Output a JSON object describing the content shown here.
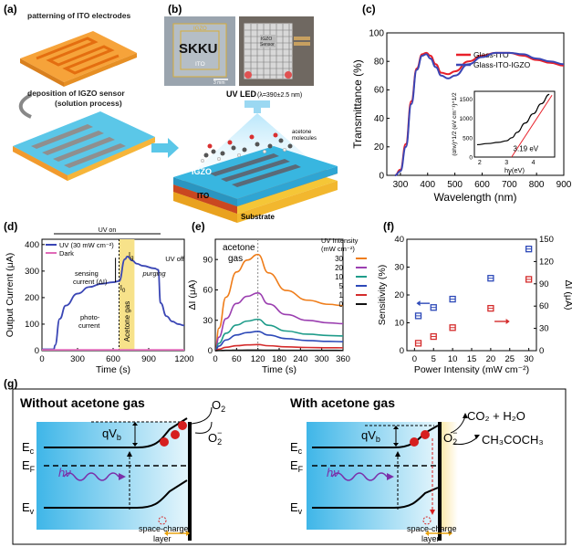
{
  "panels": {
    "a": {
      "label": "(a)",
      "step1": "patterning of ITO electrodes",
      "step2": "deposition of IGZO sensor",
      "step2b": "(solution process)"
    },
    "b": {
      "label": "(b)",
      "photo1_igzo": "IGZO",
      "photo1_skku": "SKKU",
      "photo1_ito": "ITO",
      "photo1_scale": "3 mm",
      "photo2_text1": "IGZO",
      "photo2_text2": "Sensor",
      "uv_led": "UV LED",
      "uv_lambda": "(λ=390±2.5 nm)",
      "acetone": "acetone",
      "molecules": "molecules",
      "igzo": "IGZO",
      "ito": "ITO",
      "substrate": "Substrate"
    },
    "g": {
      "label": "(g)",
      "left_title": "Without acetone gas",
      "right_title": "With acetone gas",
      "qvb": "qV",
      "qvb_sub": "b",
      "ec": "E",
      "ec_sub": "c",
      "ef": "E",
      "ef_sub": "F",
      "ev": "E",
      "ev_sub": "v",
      "hv": "hν",
      "o2": "O",
      "o2_sub": "2",
      "o2m": "O",
      "o2m_sub": "2",
      "o2m_sup": "−",
      "products": "CO₂ + H₂O",
      "acetone_formula": "CH₃COCH₃",
      "space_charge": "space-charge",
      "layer": "layer"
    }
  },
  "chart_data": [
    {
      "id": "c",
      "label": "(c)",
      "type": "line",
      "xlabel": "Wavelength (nm)",
      "ylabel": "Transmittance (%)",
      "xlim": [
        250,
        900
      ],
      "ylim": [
        0,
        100
      ],
      "xticks": [
        300,
        400,
        500,
        600,
        700,
        800,
        900
      ],
      "yticks": [
        0,
        20,
        40,
        60,
        80,
        100
      ],
      "legend_position": "top-right",
      "series": [
        {
          "name": "Glass-ITO",
          "color": "#e8202a",
          "x": [
            280,
            300,
            320,
            340,
            360,
            380,
            395,
            410,
            430,
            450,
            475,
            500,
            550,
            600,
            650,
            700,
            750,
            800,
            850,
            900
          ],
          "y": [
            0,
            4,
            22,
            52,
            75,
            85,
            86,
            84,
            78,
            72,
            71,
            73,
            80,
            84,
            86,
            86,
            84,
            81,
            79,
            77
          ]
        },
        {
          "name": "Glass-ITO-IGZO",
          "color": "#3a46b5",
          "x": [
            280,
            300,
            320,
            340,
            360,
            380,
            395,
            410,
            430,
            450,
            475,
            500,
            550,
            600,
            650,
            700,
            750,
            800,
            850,
            900
          ],
          "y": [
            0,
            3,
            20,
            50,
            74,
            84,
            85,
            82,
            76,
            70,
            68,
            70,
            78,
            83,
            86,
            86,
            85,
            82,
            80,
            78
          ]
        }
      ],
      "inset": {
        "xlabel": "hν(eV)",
        "ylabel": "(αhν)^1/2 (eV cm⁻¹)^1/2",
        "xlim": [
          1.8,
          4.8
        ],
        "ylim": [
          0,
          1700
        ],
        "xticks": [
          2,
          3,
          4
        ],
        "yticks": [
          0,
          500,
          1000,
          1500
        ],
        "annotation": "3.19 eV",
        "x": [
          1.9,
          2.3,
          2.7,
          3.0,
          3.2,
          3.4,
          3.7,
          4.0,
          4.3,
          4.6
        ],
        "y": [
          320,
          350,
          380,
          420,
          500,
          640,
          880,
          1120,
          1380,
          1620
        ]
      }
    },
    {
      "id": "d",
      "label": "(d)",
      "type": "line",
      "xlabel": "Time (s)",
      "ylabel": "Output Current (μA)",
      "xlim": [
        0,
        1200
      ],
      "ylim": [
        0,
        420
      ],
      "xticks": [
        0,
        300,
        600,
        900,
        1200
      ],
      "yticks": [
        0,
        100,
        200,
        300,
        400
      ],
      "legend_position": "top-left",
      "uv_on_label": "UV on",
      "uv_off_label": "UV off",
      "acetone_band_label": "Acetone gas",
      "annotations": {
        "sensing": "sensing",
        "current": "current (ΔI)",
        "purging": "purging",
        "photo": "photo-",
        "current2": "current",
        "ig": "I",
        "ig_sub": "g",
        "i0": "I",
        "i0_sub": "0"
      },
      "series": [
        {
          "name": "UV (30 mW cm⁻²)",
          "color": "#3a46b5",
          "x": [
            0,
            100,
            110,
            150,
            200,
            300,
            400,
            500,
            600,
            650,
            700,
            720,
            760,
            800,
            850,
            950,
            980,
            1000,
            1050,
            1100,
            1150,
            1200
          ],
          "y": [
            5,
            5,
            20,
            120,
            170,
            215,
            240,
            252,
            258,
            262,
            345,
            355,
            340,
            328,
            320,
            310,
            305,
            180,
            130,
            110,
            100,
            95
          ]
        },
        {
          "name": "Dark",
          "color": "#e06ab8",
          "x": [
            0,
            300,
            600,
            900,
            1200
          ],
          "y": [
            3,
            3,
            3,
            3,
            3
          ]
        }
      ]
    },
    {
      "id": "e",
      "label": "(e)",
      "type": "line",
      "xlabel": "Time (s)",
      "ylabel": "ΔI (μA)",
      "xlim": [
        0,
        360
      ],
      "ylim": [
        0,
        110
      ],
      "xticks": [
        0,
        60,
        120,
        180,
        240,
        300,
        360
      ],
      "yticks": [
        0,
        30,
        60,
        90
      ],
      "legend_title": "UV Intensity",
      "legend_unit": "(mW cm⁻²)",
      "annotation": "acetone",
      "annotation2": "gas",
      "series": [
        {
          "name": "30",
          "color": "#ef7d1a",
          "peak": 95
        },
        {
          "name": "20",
          "color": "#9b3fb0",
          "peak": 57
        },
        {
          "name": "10",
          "color": "#1f9c8a",
          "peak": 31
        },
        {
          "name": "5",
          "color": "#2d49b8",
          "peak": 19
        },
        {
          "name": "1",
          "color": "#d42c2c",
          "peak": 6
        },
        {
          "name": "0",
          "color": "#111111",
          "peak": 0.5
        }
      ]
    },
    {
      "id": "f",
      "label": "(f)",
      "type": "scatter",
      "xlabel": "Power Intensity (mW cm⁻²)",
      "ylabel": "Sensitivity (%)",
      "y2label": "ΔI (μA)",
      "xlim": [
        -2,
        32
      ],
      "ylim": [
        0,
        40
      ],
      "y2lim": [
        0,
        150
      ],
      "xticks": [
        0,
        5,
        10,
        15,
        20,
        25,
        30
      ],
      "yticks": [
        0,
        10,
        20,
        30,
        40
      ],
      "y2ticks": [
        0,
        30,
        60,
        90,
        120,
        150
      ],
      "series": [
        {
          "name": "Sensitivity",
          "color": "#2d49b8",
          "axis": "left",
          "x": [
            1,
            5,
            10,
            20,
            30
          ],
          "y": [
            12.5,
            15.5,
            18.5,
            26,
            36.5
          ]
        },
        {
          "name": "ΔI",
          "color": "#d42c2c",
          "axis": "right",
          "x": [
            1,
            5,
            10,
            20,
            30
          ],
          "y": [
            10,
            19,
            31,
            57,
            96
          ]
        }
      ]
    }
  ]
}
